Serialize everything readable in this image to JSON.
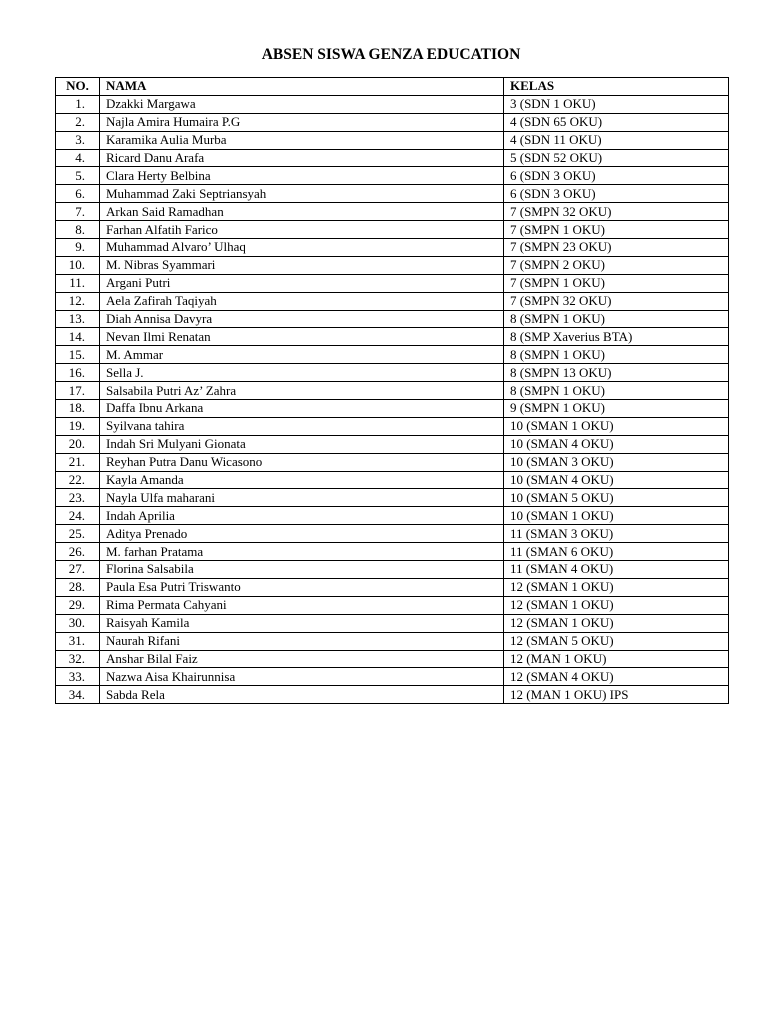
{
  "title": "ABSEN SISWA GENZA EDUCATION",
  "headers": {
    "no": "NO.",
    "nama": "NAMA",
    "kelas": "KELAS"
  },
  "rows": [
    {
      "no": "1.",
      "nama": "Dzakki Margawa",
      "kelas": "3 (SDN 1 OKU)"
    },
    {
      "no": "2.",
      "nama": "Najla Amira Humaira P.G",
      "kelas": "4 (SDN 65 OKU)"
    },
    {
      "no": "3.",
      "nama": "Karamika Aulia Murba",
      "kelas": "4 (SDN 11 OKU)"
    },
    {
      "no": "4.",
      "nama": "Ricard Danu Arafa",
      "kelas": "5 (SDN 52 OKU)"
    },
    {
      "no": "5.",
      "nama": "Clara Herty Belbina",
      "kelas": "6 (SDN 3 OKU)"
    },
    {
      "no": "6.",
      "nama": "Muhammad Zaki Septriansyah",
      "kelas": "6 (SDN 3 OKU)"
    },
    {
      "no": "7.",
      "nama": "Arkan Said Ramadhan",
      "kelas": "7 (SMPN 32 OKU)"
    },
    {
      "no": "8.",
      "nama": "Farhan Alfatih Farico",
      "kelas": "7 (SMPN 1 OKU)"
    },
    {
      "no": "9.",
      "nama": "Muhammad Alvaro’ Ulhaq",
      "kelas": "7 (SMPN 23 OKU)"
    },
    {
      "no": "10.",
      "nama": "M. Nibras Syammari",
      "kelas": "7 (SMPN 2 OKU)"
    },
    {
      "no": "11.",
      "nama": "Argani Putri",
      "kelas": "7 (SMPN 1 OKU)"
    },
    {
      "no": "12.",
      "nama": "Aela Zafirah Taqiyah",
      "kelas": "7 (SMPN 32 OKU)"
    },
    {
      "no": "13.",
      "nama": "Diah Annisa Davyra",
      "kelas": "8 (SMPN 1 OKU)"
    },
    {
      "no": "14.",
      "nama": "Nevan Ilmi Renatan",
      "kelas": "8 (SMP Xaverius BTA)"
    },
    {
      "no": "15.",
      "nama": "M. Ammar",
      "kelas": "8 (SMPN 1 OKU)"
    },
    {
      "no": "16.",
      "nama": "Sella J.",
      "kelas": "8 (SMPN 13 OKU)"
    },
    {
      "no": "17.",
      "nama": "Salsabila Putri Az’ Zahra",
      "kelas": "8 (SMPN 1 OKU)"
    },
    {
      "no": "18.",
      "nama": "Daffa Ibnu Arkana",
      "kelas": "9 (SMPN 1 OKU)"
    },
    {
      "no": "19.",
      "nama": "Syilvana tahira",
      "kelas": "10 (SMAN 1 OKU)"
    },
    {
      "no": "20.",
      "nama": "Indah Sri Mulyani Gionata",
      "kelas": "10 (SMAN 4 OKU)"
    },
    {
      "no": "21.",
      "nama": "Reyhan Putra Danu Wicasono",
      "kelas": "10 (SMAN 3 OKU)"
    },
    {
      "no": "22.",
      "nama": "Kayla Amanda",
      "kelas": "10 (SMAN 4 OKU)"
    },
    {
      "no": "23.",
      "nama": "Nayla Ulfa maharani",
      "kelas": "10 (SMAN 5 OKU)"
    },
    {
      "no": "24.",
      "nama": "Indah Aprilia",
      "kelas": "10 (SMAN 1 OKU)"
    },
    {
      "no": "25.",
      "nama": "Aditya Prenado",
      "kelas": "11 (SMAN 3 OKU)"
    },
    {
      "no": "26.",
      "nama": "M. farhan Pratama",
      "kelas": "11 (SMAN 6 OKU)"
    },
    {
      "no": "27.",
      "nama": "Florina Salsabila",
      "kelas": "11 (SMAN 4 OKU)"
    },
    {
      "no": "28.",
      "nama": "Paula Esa Putri Triswanto",
      "kelas": "12 (SMAN 1 OKU)"
    },
    {
      "no": "29.",
      "nama": "Rima Permata Cahyani",
      "kelas": "12 (SMAN 1 OKU)"
    },
    {
      "no": "30.",
      "nama": "Raisyah Kamila",
      "kelas": "12 (SMAN 1 OKU)"
    },
    {
      "no": "31.",
      "nama": "Naurah Rifani",
      "kelas": "12 (SMAN 5 OKU)"
    },
    {
      "no": "32.",
      "nama": "Anshar Bilal Faiz",
      "kelas": "12 (MAN 1 OKU)"
    },
    {
      "no": "33.",
      "nama": "Nazwa Aisa Khairunnisa",
      "kelas": "12 (SMAN 4 OKU)"
    },
    {
      "no": "34.",
      "nama": "Sabda Rela",
      "kelas": "12 (MAN 1 OKU) IPS"
    }
  ]
}
